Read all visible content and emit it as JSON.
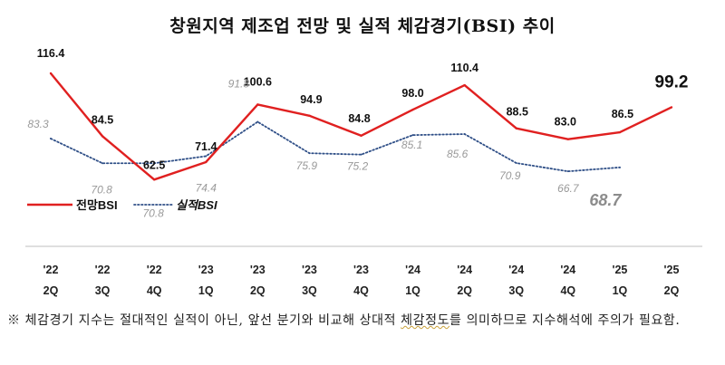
{
  "chart_data": {
    "type": "line",
    "title": "창원지역 제조업 전망 및 실적 체감경기(BSI) 추이",
    "categories": [
      [
        "'22",
        "2Q"
      ],
      [
        "'22",
        "3Q"
      ],
      [
        "'22",
        "4Q"
      ],
      [
        "'23",
        "1Q"
      ],
      [
        "'23",
        "2Q"
      ],
      [
        "'23",
        "3Q"
      ],
      [
        "'23",
        "4Q"
      ],
      [
        "'24",
        "1Q"
      ],
      [
        "'24",
        "2Q"
      ],
      [
        "'24",
        "3Q"
      ],
      [
        "'24",
        "4Q"
      ],
      [
        "'25",
        "1Q"
      ],
      [
        "'25",
        "2Q"
      ]
    ],
    "series": [
      {
        "name": "전망BSI",
        "color": "#e02020",
        "style": "solid",
        "values": [
          116.4,
          84.5,
          62.5,
          71.4,
          100.6,
          94.9,
          84.8,
          98.0,
          110.4,
          88.5,
          83.0,
          86.5,
          99.2
        ],
        "labels": [
          "116.4",
          "84.5",
          "62.5",
          "71.4",
          "100.6",
          "94.9",
          "84.8",
          "98.0",
          "110.4",
          "88.5",
          "83.0",
          "86.5",
          "99.2"
        ]
      },
      {
        "name": "실적BSI",
        "color": "#2f4f87",
        "style": "dotted",
        "values": [
          83.3,
          70.8,
          70.8,
          74.4,
          91.8,
          75.9,
          75.2,
          85.1,
          85.6,
          70.9,
          66.7,
          68.7,
          null
        ],
        "labels": [
          "83.3",
          "70.8",
          "70.8",
          "74.4",
          "91.8",
          "75.9",
          "75.2",
          "85.1",
          "85.6",
          "70.9",
          "66.7",
          "68.7",
          ""
        ]
      }
    ],
    "legend": "left-middle",
    "grid": false
  },
  "note": {
    "prefix": "※ 체감경기 지수는 절대적인 실적이 아닌, 앞선 분기와 비교해 상대적 ",
    "underlined": "체감정도",
    "suffix": "를 의미하므로 지수해석에 주의가 필요함."
  }
}
